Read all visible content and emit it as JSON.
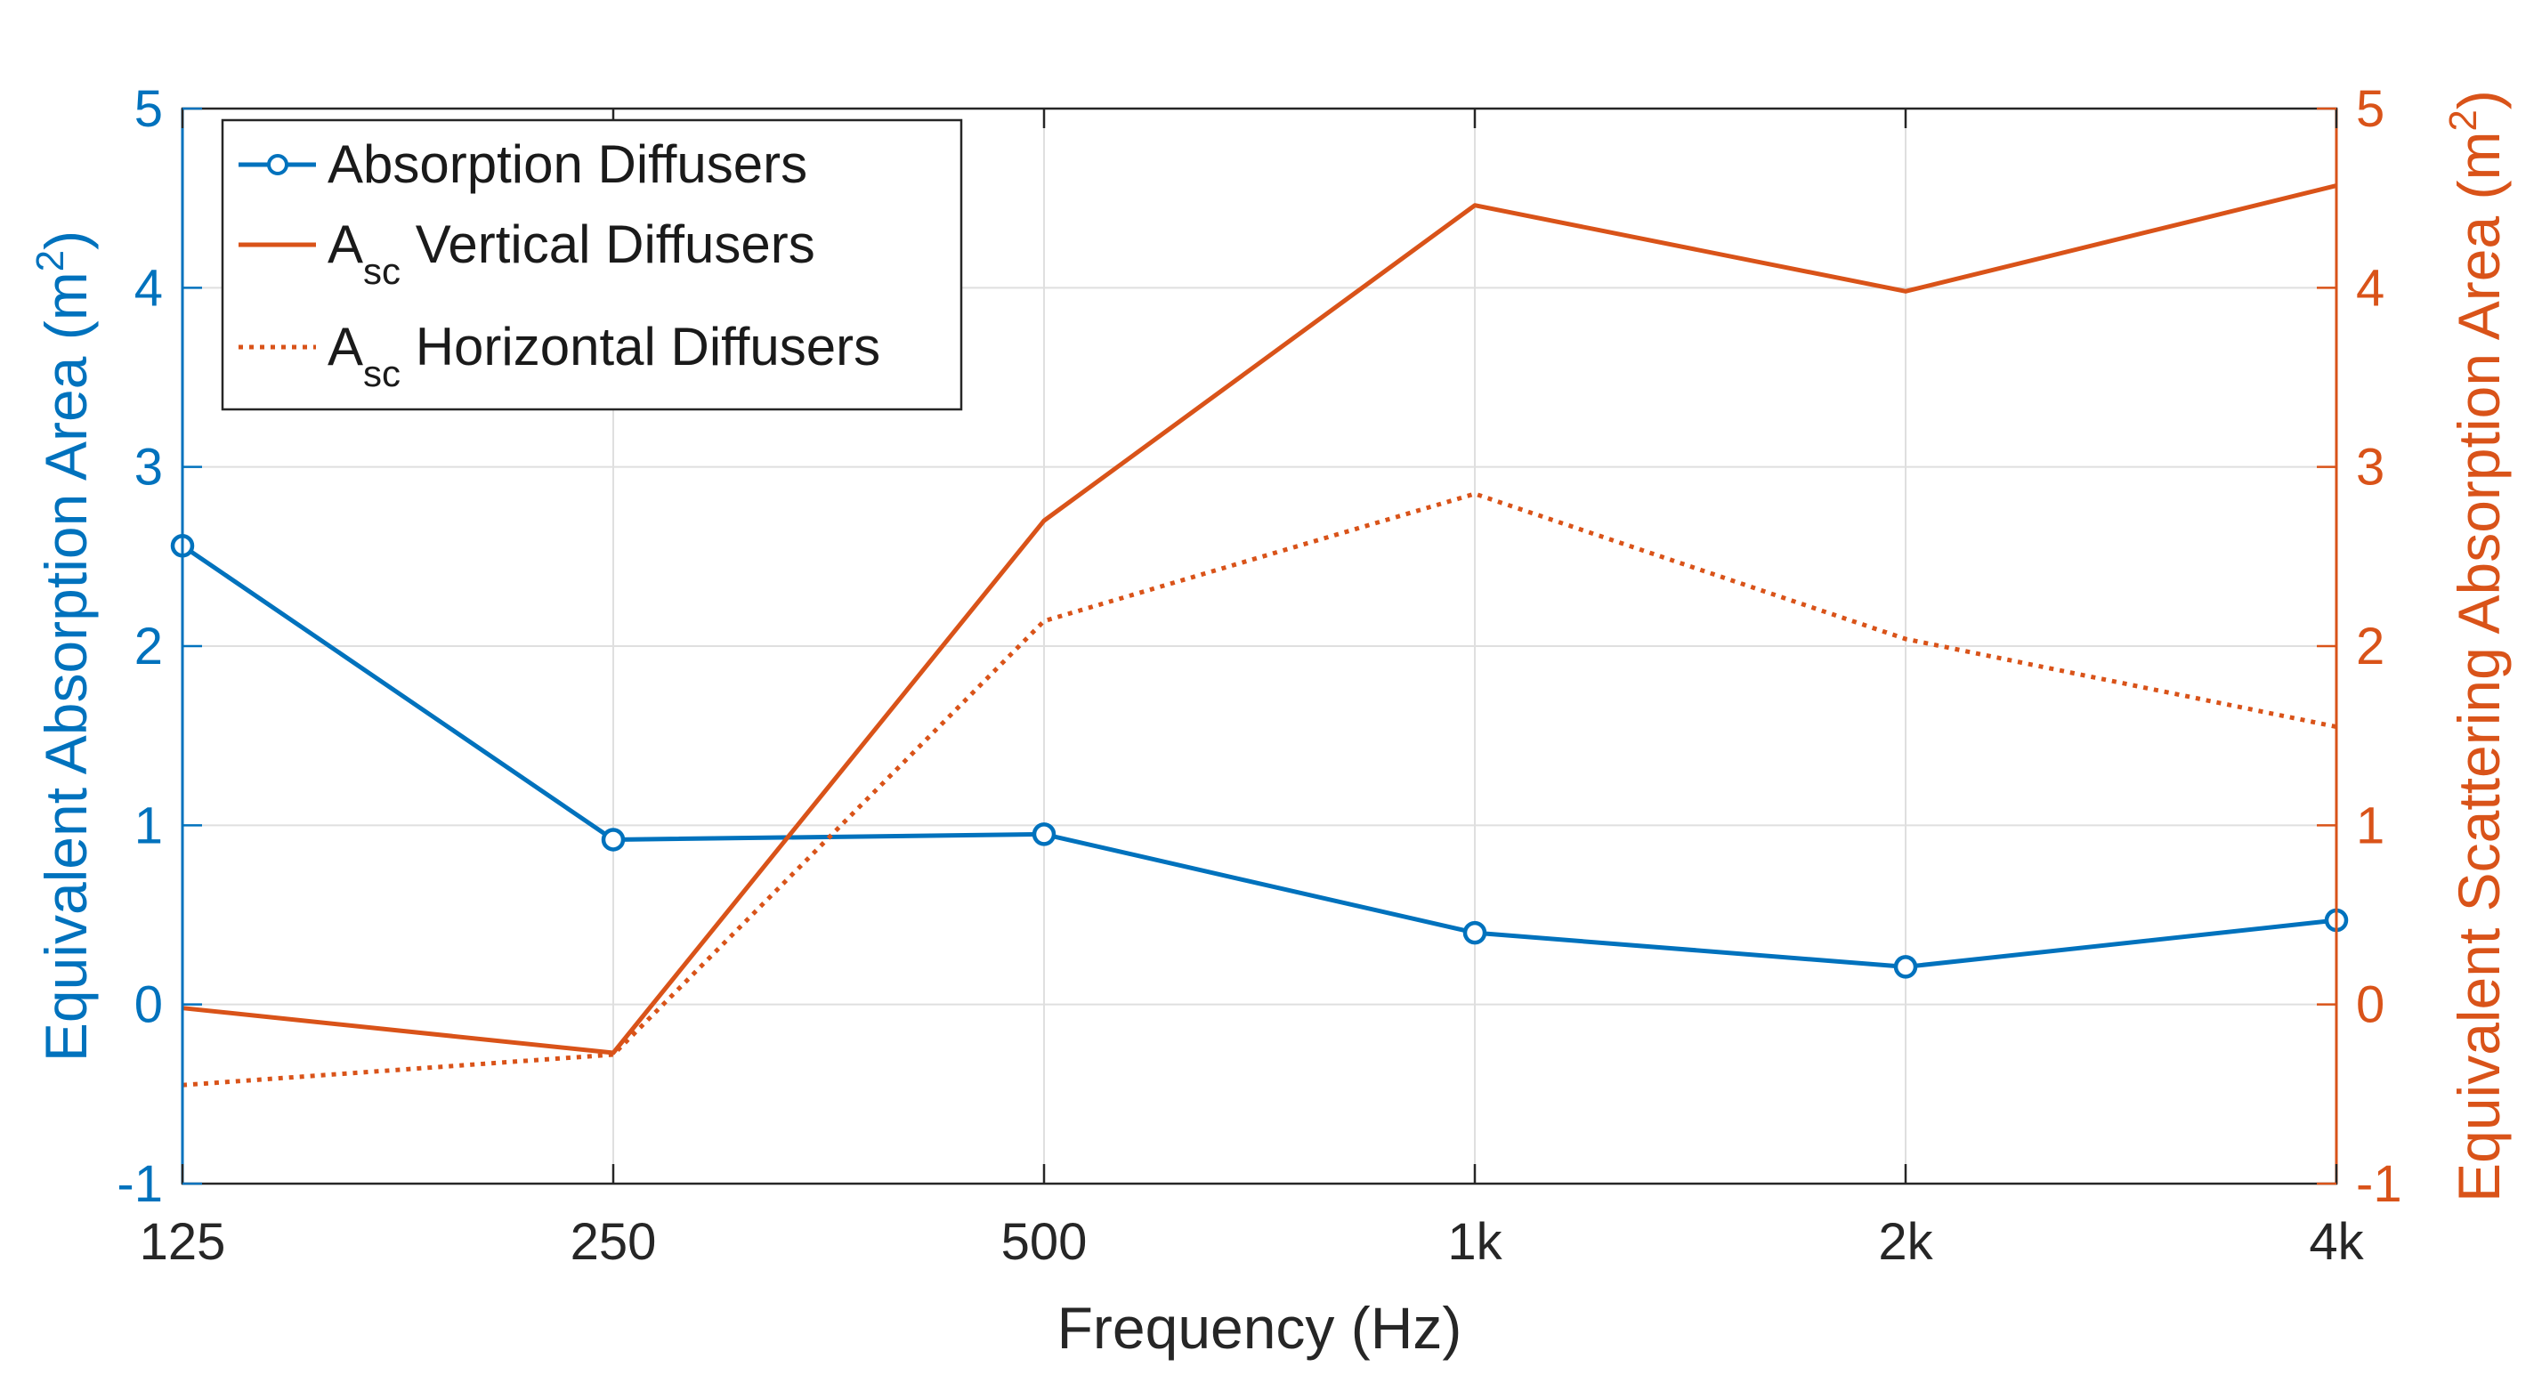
{
  "chart_data": {
    "type": "line",
    "title": "",
    "xlabel": "Frequency (Hz)",
    "ylabel_left": {
      "main": "Equivalent Absorption Area (m",
      "sup": "2",
      "close": ")"
    },
    "ylabel_right": {
      "main": "Equivalent Scattering Absorption Area (m",
      "sup": "2",
      "close": ")"
    },
    "categories": [
      "125",
      "250",
      "500",
      "1k",
      "2k",
      "4k"
    ],
    "ylim_left": [
      -1,
      5
    ],
    "ylim_right": [
      -1,
      5
    ],
    "yticks_left": [
      "-1",
      "0",
      "1",
      "2",
      "3",
      "4",
      "5"
    ],
    "yticks_right": [
      "-1",
      "0",
      "1",
      "2",
      "3",
      "4",
      "5"
    ],
    "grid": true,
    "legend_position": "top-left",
    "series": [
      {
        "id": "absorption",
        "name": "Absorption Diffusers",
        "axis": "left",
        "style": "solid",
        "marker": "circle",
        "color": "#0072BD",
        "legend": {
          "main": "Absorption Diffusers",
          "sub": "",
          "rest": ""
        },
        "values": [
          2.56,
          0.92,
          0.95,
          0.4,
          0.21,
          0.47
        ]
      },
      {
        "id": "vertical",
        "name": "Asc Vertical Diffusers",
        "axis": "right",
        "style": "solid",
        "marker": "none",
        "color": "#D95319",
        "legend": {
          "main": "A",
          "sub": "sc",
          "rest": " Vertical Diffusers"
        },
        "values": [
          -0.02,
          -0.27,
          2.7,
          4.46,
          3.98,
          4.57
        ]
      },
      {
        "id": "horizontal",
        "name": "Asc Horizontal Diffusers",
        "axis": "right",
        "style": "dotted",
        "marker": "none",
        "color": "#D95319",
        "legend": {
          "main": "A",
          "sub": "sc",
          "rest": " Horizontal Diffusers"
        },
        "values": [
          -0.45,
          -0.28,
          2.14,
          2.85,
          2.04,
          1.55
        ]
      }
    ],
    "colors": {
      "left_axis": "#0072BD",
      "right_axis": "#D95319",
      "grid": "#DFDFDF",
      "box": "#262626"
    }
  }
}
